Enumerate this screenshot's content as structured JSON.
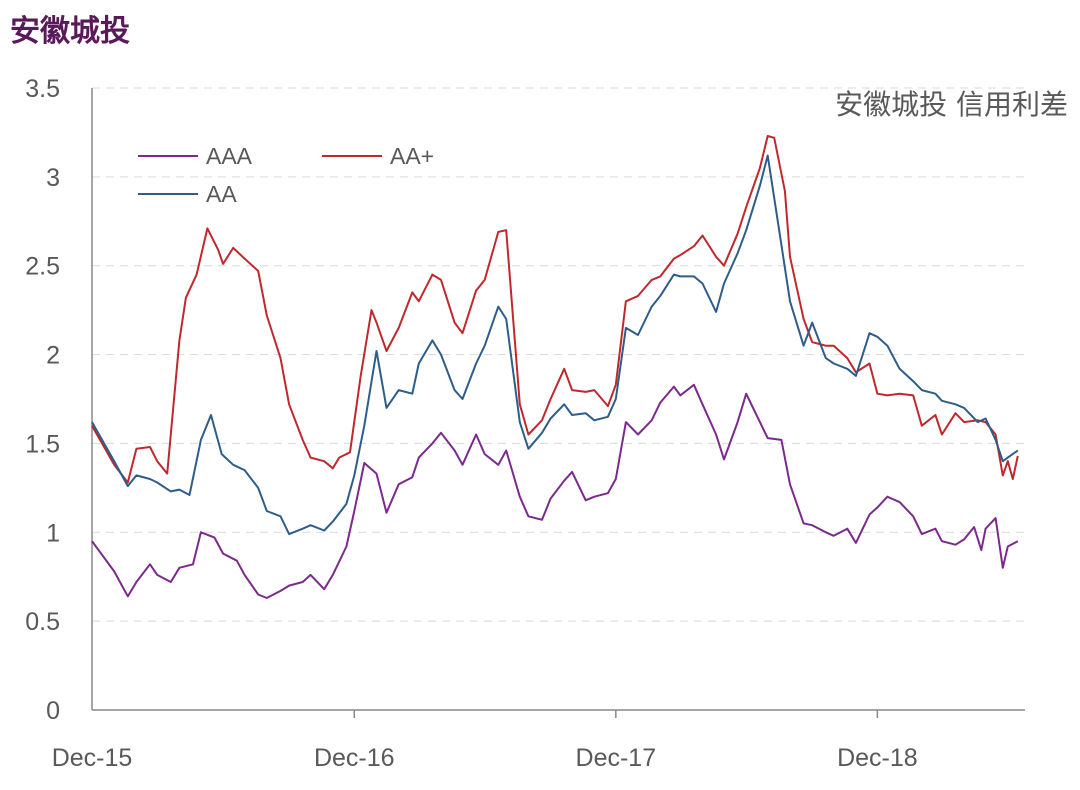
{
  "page": {
    "title": "安徽城投"
  },
  "chart_data": {
    "type": "line",
    "title": "安徽城投",
    "subtitle": "安徽城投 信用利差",
    "x_ticks": [
      "Dec-15",
      "Dec-16",
      "Dec-17",
      "Dec-18"
    ],
    "x_range": [
      "2015-12",
      "2019-06"
    ],
    "ylim": [
      0,
      3.5
    ],
    "y_ticks": [
      "0",
      "0.5",
      "1",
      "1.5",
      "2",
      "2.5",
      "3",
      "3.5"
    ],
    "grid": "horizontal dashed",
    "legend_placement": "top-left",
    "series": [
      {
        "name": "AAA",
        "color": "#7b2a8c",
        "points": [
          [
            "2015-12",
            0.95
          ],
          [
            "2016-01",
            0.78
          ],
          [
            "2016-01-20",
            0.64
          ],
          [
            "2016-02",
            0.72
          ],
          [
            "2016-02-20",
            0.82
          ],
          [
            "2016-03",
            0.76
          ],
          [
            "2016-03-20",
            0.72
          ],
          [
            "2016-04",
            0.8
          ],
          [
            "2016-04-20",
            0.82
          ],
          [
            "2016-05",
            1.0
          ],
          [
            "2016-05-20",
            0.97
          ],
          [
            "2016-06",
            0.88
          ],
          [
            "2016-06-20",
            0.84
          ],
          [
            "2016-07",
            0.76
          ],
          [
            "2016-07-20",
            0.65
          ],
          [
            "2016-08",
            0.63
          ],
          [
            "2016-08-20",
            0.67
          ],
          [
            "2016-09",
            0.7
          ],
          [
            "2016-09-20",
            0.72
          ],
          [
            "2016-10",
            0.76
          ],
          [
            "2016-10-20",
            0.68
          ],
          [
            "2016-11",
            0.76
          ],
          [
            "2016-11-20",
            0.92
          ],
          [
            "2016-12",
            1.12
          ],
          [
            "2016-12-15",
            1.39
          ],
          [
            "2017-01",
            1.33
          ],
          [
            "2017-01-15",
            1.11
          ],
          [
            "2017-02",
            1.27
          ],
          [
            "2017-02-20",
            1.31
          ],
          [
            "2017-03",
            1.42
          ],
          [
            "2017-03-20",
            1.5
          ],
          [
            "2017-04",
            1.56
          ],
          [
            "2017-04-20",
            1.46
          ],
          [
            "2017-05",
            1.38
          ],
          [
            "2017-05-20",
            1.55
          ],
          [
            "2017-06",
            1.44
          ],
          [
            "2017-06-20",
            1.38
          ],
          [
            "2017-07",
            1.46
          ],
          [
            "2017-07-20",
            1.2
          ],
          [
            "2017-08",
            1.09
          ],
          [
            "2017-08-20",
            1.07
          ],
          [
            "2017-09",
            1.19
          ],
          [
            "2017-09-20",
            1.29
          ],
          [
            "2017-10",
            1.34
          ],
          [
            "2017-10-20",
            1.18
          ],
          [
            "2017-11",
            1.2
          ],
          [
            "2017-11-20",
            1.22
          ],
          [
            "2017-12",
            1.3
          ],
          [
            "2017-12-15",
            1.62
          ],
          [
            "2018-01",
            1.55
          ],
          [
            "2018-01-20",
            1.63
          ],
          [
            "2018-02",
            1.73
          ],
          [
            "2018-02-20",
            1.82
          ],
          [
            "2018-03",
            1.77
          ],
          [
            "2018-03-20",
            1.83
          ],
          [
            "2018-04",
            1.72
          ],
          [
            "2018-04-20",
            1.55
          ],
          [
            "2018-05",
            1.41
          ],
          [
            "2018-05-20",
            1.62
          ],
          [
            "2018-06",
            1.78
          ],
          [
            "2018-06-20",
            1.62
          ],
          [
            "2018-07",
            1.53
          ],
          [
            "2018-07-20",
            1.52
          ],
          [
            "2018-08",
            1.27
          ],
          [
            "2018-08-20",
            1.05
          ],
          [
            "2018-09",
            1.04
          ],
          [
            "2018-09-20",
            1.0
          ],
          [
            "2018-10",
            0.98
          ],
          [
            "2018-10-20",
            1.02
          ],
          [
            "2018-11",
            0.94
          ],
          [
            "2018-11-20",
            1.1
          ],
          [
            "2018-12",
            1.14
          ],
          [
            "2018-12-15",
            1.2
          ],
          [
            "2019-01",
            1.17
          ],
          [
            "2019-01-20",
            1.09
          ],
          [
            "2019-02",
            0.99
          ],
          [
            "2019-02-20",
            1.02
          ],
          [
            "2019-03",
            0.95
          ],
          [
            "2019-03-20",
            0.93
          ],
          [
            "2019-04",
            0.96
          ],
          [
            "2019-04-15",
            1.03
          ],
          [
            "2019-04-25",
            0.9
          ],
          [
            "2019-05",
            1.02
          ],
          [
            "2019-05-15",
            1.08
          ],
          [
            "2019-05-25",
            0.8
          ],
          [
            "2019-06",
            0.92
          ],
          [
            "2019-06-15",
            0.95
          ]
        ]
      },
      {
        "name": "AA+",
        "color": "#c0282d",
        "points": [
          [
            "2015-12",
            1.6
          ],
          [
            "2016-01",
            1.38
          ],
          [
            "2016-01-20",
            1.28
          ],
          [
            "2016-02",
            1.47
          ],
          [
            "2016-02-20",
            1.48
          ],
          [
            "2016-03",
            1.4
          ],
          [
            "2016-03-15",
            1.33
          ],
          [
            "2016-04",
            2.08
          ],
          [
            "2016-04-10",
            2.32
          ],
          [
            "2016-04-25",
            2.45
          ],
          [
            "2016-05-10",
            2.71
          ],
          [
            "2016-05-25",
            2.59
          ],
          [
            "2016-06",
            2.51
          ],
          [
            "2016-06-15",
            2.6
          ],
          [
            "2016-07",
            2.54
          ],
          [
            "2016-07-20",
            2.47
          ],
          [
            "2016-08",
            2.22
          ],
          [
            "2016-08-20",
            1.98
          ],
          [
            "2016-09",
            1.72
          ],
          [
            "2016-09-20",
            1.52
          ],
          [
            "2016-10",
            1.42
          ],
          [
            "2016-10-20",
            1.4
          ],
          [
            "2016-11",
            1.36
          ],
          [
            "2016-11-10",
            1.42
          ],
          [
            "2016-11-25",
            1.45
          ],
          [
            "2016-12-10",
            1.88
          ],
          [
            "2016-12-25",
            2.25
          ],
          [
            "2017-01",
            2.18
          ],
          [
            "2017-01-15",
            2.02
          ],
          [
            "2017-02",
            2.15
          ],
          [
            "2017-02-20",
            2.35
          ],
          [
            "2017-03",
            2.3
          ],
          [
            "2017-03-20",
            2.45
          ],
          [
            "2017-04",
            2.42
          ],
          [
            "2017-04-20",
            2.18
          ],
          [
            "2017-05",
            2.12
          ],
          [
            "2017-05-20",
            2.36
          ],
          [
            "2017-06",
            2.42
          ],
          [
            "2017-06-20",
            2.69
          ],
          [
            "2017-07",
            2.7
          ],
          [
            "2017-07-20",
            1.72
          ],
          [
            "2017-08",
            1.55
          ],
          [
            "2017-08-20",
            1.63
          ],
          [
            "2017-09",
            1.75
          ],
          [
            "2017-09-20",
            1.92
          ],
          [
            "2017-10",
            1.8
          ],
          [
            "2017-10-20",
            1.79
          ],
          [
            "2017-11",
            1.8
          ],
          [
            "2017-11-20",
            1.71
          ],
          [
            "2017-12",
            1.83
          ],
          [
            "2017-12-15",
            2.3
          ],
          [
            "2018-01",
            2.33
          ],
          [
            "2018-01-20",
            2.42
          ],
          [
            "2018-02",
            2.44
          ],
          [
            "2018-02-20",
            2.54
          ],
          [
            "2018-03",
            2.56
          ],
          [
            "2018-03-20",
            2.61
          ],
          [
            "2018-04",
            2.67
          ],
          [
            "2018-04-20",
            2.55
          ],
          [
            "2018-05",
            2.5
          ],
          [
            "2018-05-20",
            2.68
          ],
          [
            "2018-06",
            2.83
          ],
          [
            "2018-06-20",
            3.05
          ],
          [
            "2018-07",
            3.23
          ],
          [
            "2018-07-10",
            3.22
          ],
          [
            "2018-07-25",
            2.92
          ],
          [
            "2018-08",
            2.55
          ],
          [
            "2018-08-20",
            2.2
          ],
          [
            "2018-09",
            2.07
          ],
          [
            "2018-09-20",
            2.05
          ],
          [
            "2018-10",
            2.05
          ],
          [
            "2018-10-20",
            1.98
          ],
          [
            "2018-11",
            1.9
          ],
          [
            "2018-11-20",
            1.95
          ],
          [
            "2018-12",
            1.78
          ],
          [
            "2018-12-15",
            1.77
          ],
          [
            "2019-01",
            1.78
          ],
          [
            "2019-01-20",
            1.77
          ],
          [
            "2019-02",
            1.6
          ],
          [
            "2019-02-20",
            1.66
          ],
          [
            "2019-03",
            1.55
          ],
          [
            "2019-03-20",
            1.67
          ],
          [
            "2019-04",
            1.62
          ],
          [
            "2019-04-20",
            1.63
          ],
          [
            "2019-05",
            1.62
          ],
          [
            "2019-05-15",
            1.55
          ],
          [
            "2019-05-25",
            1.32
          ],
          [
            "2019-06",
            1.4
          ],
          [
            "2019-06-08",
            1.3
          ],
          [
            "2019-06-15",
            1.43
          ]
        ]
      },
      {
        "name": "AA",
        "color": "#2e5d8a",
        "points": [
          [
            "2015-12",
            1.62
          ],
          [
            "2016-01",
            1.4
          ],
          [
            "2016-01-20",
            1.26
          ],
          [
            "2016-02",
            1.32
          ],
          [
            "2016-02-20",
            1.3
          ],
          [
            "2016-03",
            1.28
          ],
          [
            "2016-03-20",
            1.23
          ],
          [
            "2016-04",
            1.24
          ],
          [
            "2016-04-15",
            1.21
          ],
          [
            "2016-05",
            1.52
          ],
          [
            "2016-05-15",
            1.66
          ],
          [
            "2016-05-30",
            1.44
          ],
          [
            "2016-06-15",
            1.38
          ],
          [
            "2016-07",
            1.35
          ],
          [
            "2016-07-20",
            1.25
          ],
          [
            "2016-08",
            1.12
          ],
          [
            "2016-08-20",
            1.09
          ],
          [
            "2016-09",
            0.99
          ],
          [
            "2016-09-20",
            1.02
          ],
          [
            "2016-10",
            1.04
          ],
          [
            "2016-10-20",
            1.01
          ],
          [
            "2016-11",
            1.06
          ],
          [
            "2016-11-20",
            1.16
          ],
          [
            "2016-12",
            1.32
          ],
          [
            "2016-12-15",
            1.6
          ],
          [
            "2017-01",
            2.02
          ],
          [
            "2017-01-15",
            1.7
          ],
          [
            "2017-02",
            1.8
          ],
          [
            "2017-02-20",
            1.78
          ],
          [
            "2017-03",
            1.95
          ],
          [
            "2017-03-20",
            2.08
          ],
          [
            "2017-04",
            2.0
          ],
          [
            "2017-04-20",
            1.8
          ],
          [
            "2017-05",
            1.75
          ],
          [
            "2017-05-20",
            1.95
          ],
          [
            "2017-06",
            2.05
          ],
          [
            "2017-06-20",
            2.27
          ],
          [
            "2017-07",
            2.2
          ],
          [
            "2017-07-20",
            1.62
          ],
          [
            "2017-08",
            1.47
          ],
          [
            "2017-08-20",
            1.56
          ],
          [
            "2017-09",
            1.64
          ],
          [
            "2017-09-20",
            1.72
          ],
          [
            "2017-10",
            1.66
          ],
          [
            "2017-10-20",
            1.67
          ],
          [
            "2017-11",
            1.63
          ],
          [
            "2017-11-20",
            1.65
          ],
          [
            "2017-12",
            1.75
          ],
          [
            "2017-12-15",
            2.15
          ],
          [
            "2018-01",
            2.11
          ],
          [
            "2018-01-20",
            2.27
          ],
          [
            "2018-02",
            2.33
          ],
          [
            "2018-02-20",
            2.45
          ],
          [
            "2018-03",
            2.44
          ],
          [
            "2018-03-20",
            2.44
          ],
          [
            "2018-04",
            2.4
          ],
          [
            "2018-04-20",
            2.24
          ],
          [
            "2018-05",
            2.4
          ],
          [
            "2018-05-20",
            2.57
          ],
          [
            "2018-06",
            2.7
          ],
          [
            "2018-06-20",
            2.95
          ],
          [
            "2018-07",
            3.12
          ],
          [
            "2018-07-15",
            2.75
          ],
          [
            "2018-08",
            2.3
          ],
          [
            "2018-08-20",
            2.05
          ],
          [
            "2018-09",
            2.18
          ],
          [
            "2018-09-20",
            1.98
          ],
          [
            "2018-10",
            1.95
          ],
          [
            "2018-10-20",
            1.92
          ],
          [
            "2018-11",
            1.88
          ],
          [
            "2018-11-20",
            2.12
          ],
          [
            "2018-12",
            2.1
          ],
          [
            "2018-12-15",
            2.05
          ],
          [
            "2019-01",
            1.92
          ],
          [
            "2019-01-20",
            1.85
          ],
          [
            "2019-02",
            1.8
          ],
          [
            "2019-02-20",
            1.78
          ],
          [
            "2019-03",
            1.74
          ],
          [
            "2019-03-20",
            1.72
          ],
          [
            "2019-04",
            1.7
          ],
          [
            "2019-04-20",
            1.62
          ],
          [
            "2019-05",
            1.64
          ],
          [
            "2019-05-15",
            1.52
          ],
          [
            "2019-05-25",
            1.4
          ],
          [
            "2019-06",
            1.42
          ],
          [
            "2019-06-15",
            1.46
          ]
        ]
      }
    ]
  }
}
